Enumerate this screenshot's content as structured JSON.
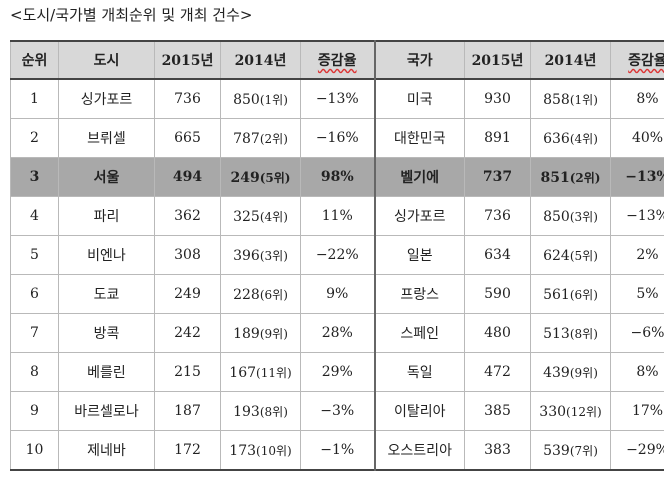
{
  "caption": "<도시/국가별 개최순위 및 개최 건수>",
  "headers": [
    "순위",
    "도시",
    "2015년",
    "2014년",
    "증감율",
    "국가",
    "2015년",
    "2014년",
    "증감율"
  ],
  "rows": [
    {
      "rank": "1",
      "city": "싱가포르",
      "c2015": "736",
      "c2014": "850",
      "c2014r": "(1위)",
      "cchg": "−13%",
      "country": "미국",
      "n2015": "930",
      "n2014": "858",
      "n2014r": "(1위)",
      "nchg": "8%"
    },
    {
      "rank": "2",
      "city": "브뤼셀",
      "c2015": "665",
      "c2014": "787",
      "c2014r": "(2위)",
      "cchg": "−16%",
      "country": "대한민국",
      "n2015": "891",
      "n2014": "636",
      "n2014r": "(4위)",
      "nchg": "40%"
    },
    {
      "rank": "3",
      "city": "서울",
      "c2015": "494",
      "c2014": "249",
      "c2014r": "(5위)",
      "cchg": "98%",
      "country": "벨기에",
      "n2015": "737",
      "n2014": "851",
      "n2014r": "(2위)",
      "nchg": "−13%"
    },
    {
      "rank": "4",
      "city": "파리",
      "c2015": "362",
      "c2014": "325",
      "c2014r": "(4위)",
      "cchg": "11%",
      "country": "싱가포르",
      "n2015": "736",
      "n2014": "850",
      "n2014r": "(3위)",
      "nchg": "−13%"
    },
    {
      "rank": "5",
      "city": "비엔나",
      "c2015": "308",
      "c2014": "396",
      "c2014r": "(3위)",
      "cchg": "−22%",
      "country": "일본",
      "n2015": "634",
      "n2014": "624",
      "n2014r": "(5위)",
      "nchg": "2%"
    },
    {
      "rank": "6",
      "city": "도쿄",
      "c2015": "249",
      "c2014": "228",
      "c2014r": "(6위)",
      "cchg": "9%",
      "country": "프랑스",
      "n2015": "590",
      "n2014": "561",
      "n2014r": "(6위)",
      "nchg": "5%"
    },
    {
      "rank": "7",
      "city": "방콕",
      "c2015": "242",
      "c2014": "189",
      "c2014r": "(9위)",
      "cchg": "28%",
      "country": "스페인",
      "n2015": "480",
      "n2014": "513",
      "n2014r": "(8위)",
      "nchg": "−6%"
    },
    {
      "rank": "8",
      "city": "베를린",
      "c2015": "215",
      "c2014": "167",
      "c2014r": "(11위)",
      "cchg": "29%",
      "country": "독일",
      "n2015": "472",
      "n2014": "439",
      "n2014r": "(9위)",
      "nchg": "8%"
    },
    {
      "rank": "9",
      "city": "바르셀로나",
      "c2015": "187",
      "c2014": "193",
      "c2014r": "(8위)",
      "cchg": "−3%",
      "country": "이탈리아",
      "n2015": "385",
      "n2014": "330",
      "n2014r": "(12위)",
      "nchg": "17%"
    },
    {
      "rank": "10",
      "city": "제네바",
      "c2015": "172",
      "c2014": "173",
      "c2014r": "(10위)",
      "cchg": "−1%",
      "country": "오스트리아",
      "n2015": "383",
      "n2014": "539",
      "n2014r": "(7위)",
      "nchg": "−29%"
    }
  ]
}
